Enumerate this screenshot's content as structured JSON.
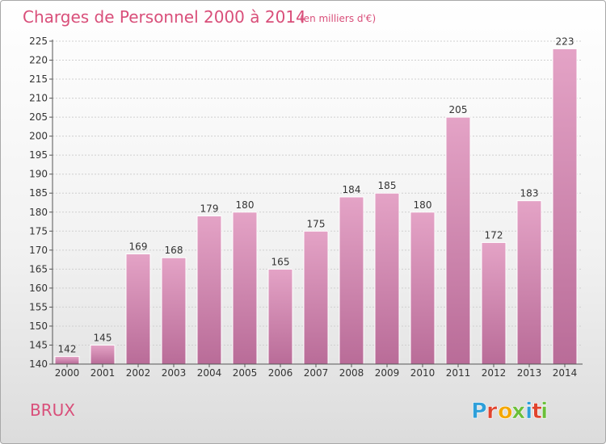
{
  "chart_data": {
    "type": "bar",
    "title": "Charges de Personnel 2000 à 2014",
    "subtitle": "(en milliers d'€)",
    "categories": [
      "2000",
      "2001",
      "2002",
      "2003",
      "2004",
      "2005",
      "2006",
      "2007",
      "2008",
      "2009",
      "2010",
      "2011",
      "2012",
      "2013",
      "2014"
    ],
    "values": [
      142,
      145,
      169,
      168,
      179,
      180,
      165,
      175,
      184,
      185,
      180,
      205,
      172,
      183,
      223
    ],
    "ylim": [
      140,
      225
    ],
    "yticks": [
      140,
      145,
      150,
      155,
      160,
      165,
      170,
      175,
      180,
      185,
      190,
      195,
      200,
      205,
      210,
      215,
      220,
      225
    ],
    "grid": true,
    "bar_color_top": "#e4a3c6",
    "bar_color_bottom": "#b96c98"
  },
  "footer": {
    "place": "BRUX",
    "logo_text": "Proxiti"
  },
  "logo_colors": [
    "#2e9fd9",
    "#e0442e",
    "#f4a700",
    "#6bbf3a",
    "#2e9fd9",
    "#e0442e",
    "#6bbf3a"
  ]
}
